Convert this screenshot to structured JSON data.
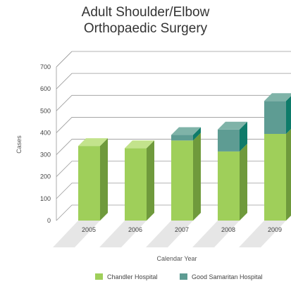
{
  "chart_data": {
    "type": "bar",
    "subtype": "stacked-3d",
    "title_lines": [
      "Adult Shoulder/Elbow",
      "Orthopaedic Surgery"
    ],
    "xlabel": "Calendar Year",
    "ylabel": "Cases",
    "ylim": [
      0,
      700
    ],
    "yticks": [
      0,
      100,
      200,
      300,
      400,
      500,
      600,
      700
    ],
    "categories": [
      "2005",
      "2006",
      "2007",
      "2008",
      "2009"
    ],
    "series": [
      {
        "name": "Chandler Hospital",
        "values": [
          340,
          330,
          365,
          315,
          395
        ]
      },
      {
        "name": "Good Samaritan Hospital",
        "values": [
          0,
          0,
          25,
          100,
          150
        ]
      }
    ],
    "grid": true,
    "legend_position": "bottom"
  },
  "colors": {
    "chandler_front": "#9fcf5a",
    "chandler_side": "#6f9a3c",
    "chandler_top": "#c3e38c",
    "goodsam_front": "#5e9c93",
    "goodsam_side": "#0e7b6a",
    "goodsam_top": "#7fb3a8",
    "grid": "#9a9a9a",
    "floor": "#e6e6e6"
  }
}
